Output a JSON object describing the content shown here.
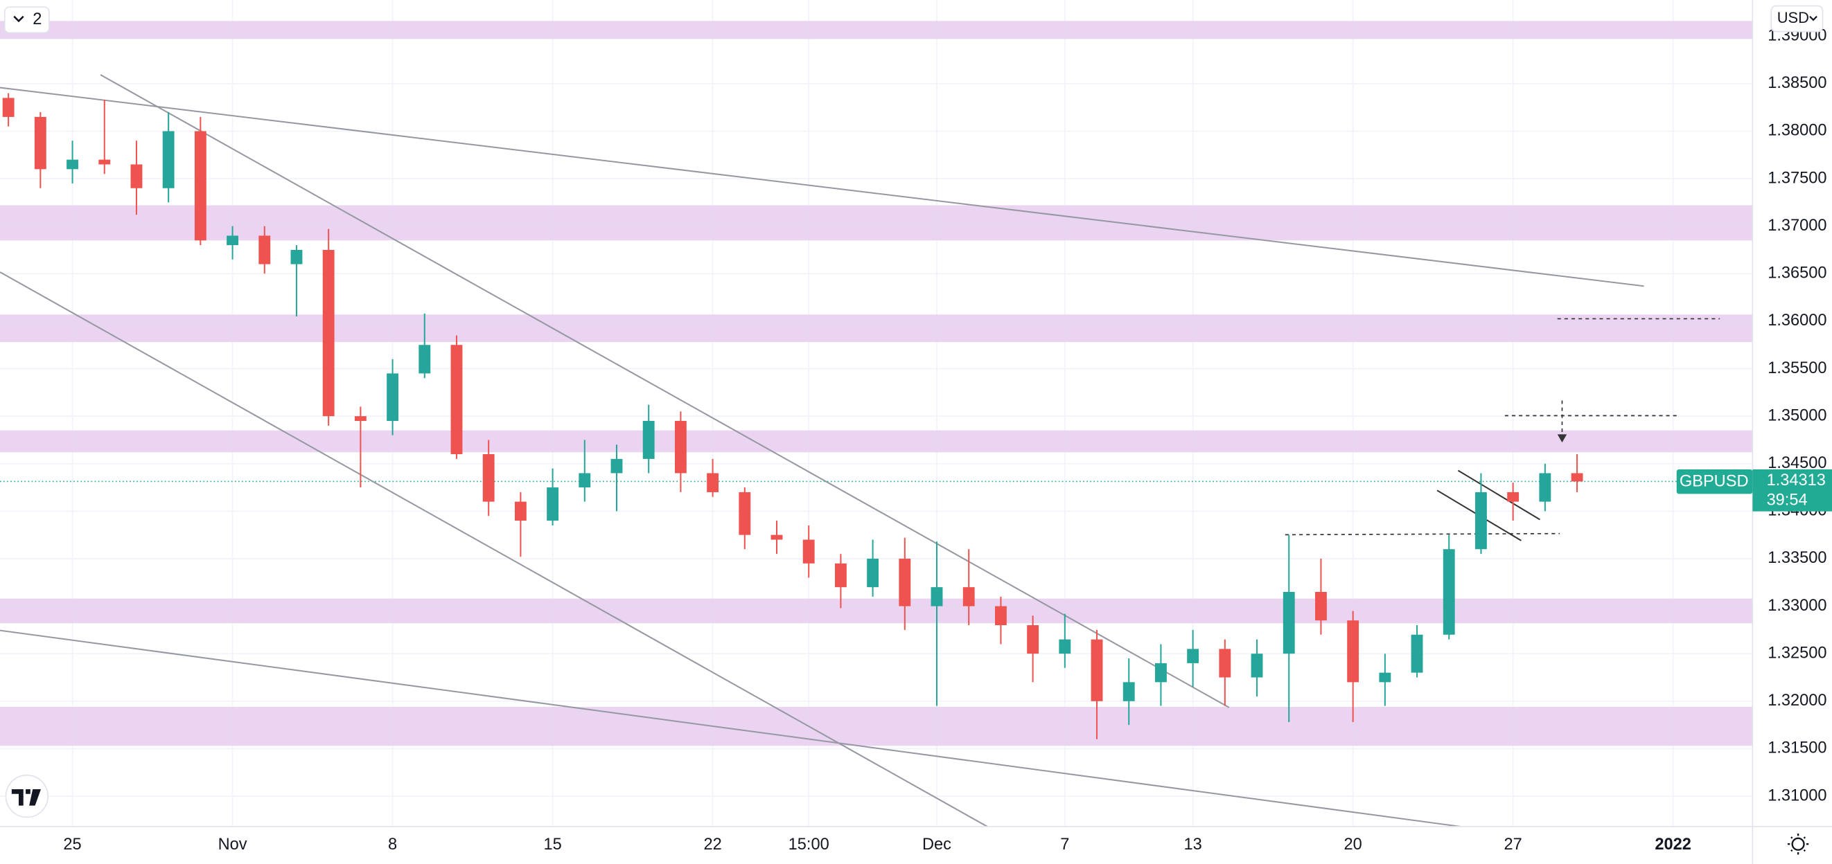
{
  "chart_data": {
    "type": "candlestick",
    "symbol": "GBPUSD",
    "countdown": "39:54",
    "last_price": 1.34313,
    "ui": {
      "interval_button": "2",
      "currency": "USD"
    },
    "categories": [
      null,
      null,
      "25",
      null,
      null,
      null,
      null,
      "Nov",
      null,
      null,
      null,
      null,
      "8",
      null,
      null,
      null,
      null,
      "15",
      null,
      null,
      null,
      null,
      "22",
      null,
      null,
      "15:00",
      null,
      null,
      null,
      "Dec",
      null,
      null,
      null,
      "7",
      null,
      null,
      null,
      "13",
      null,
      null,
      null,
      null,
      "20",
      null,
      null,
      null,
      null,
      "27",
      null,
      null,
      null,
      null,
      "2022"
    ],
    "open": [
      1.3835,
      1.3815,
      1.376,
      1.377,
      1.3765,
      1.374,
      1.38,
      1.368,
      1.369,
      1.366,
      1.3675,
      1.35,
      1.3495,
      1.3545,
      1.3575,
      1.346,
      1.341,
      1.339,
      1.3425,
      1.344,
      1.3455,
      1.3495,
      1.344,
      1.342,
      1.3375,
      1.337,
      1.3345,
      1.332,
      1.335,
      1.33,
      1.332,
      1.33,
      1.328,
      1.325,
      1.3265,
      1.32,
      1.322,
      1.324,
      1.3255,
      1.3225,
      1.325,
      1.3315,
      1.3285,
      1.322,
      1.323,
      1.327,
      1.336,
      1.342,
      1.341,
      1.344,
      null,
      null,
      null
    ],
    "high": [
      1.384,
      1.382,
      1.379,
      1.3833,
      1.379,
      1.382,
      1.3815,
      1.37,
      1.37,
      1.368,
      1.3697,
      1.351,
      1.356,
      1.3608,
      1.3585,
      1.3475,
      1.342,
      1.3445,
      1.3475,
      1.347,
      1.3512,
      1.3505,
      1.3455,
      1.3425,
      1.339,
      1.3385,
      1.3355,
      1.337,
      1.3372,
      1.3368,
      1.336,
      1.331,
      1.329,
      1.3292,
      1.3275,
      1.3245,
      1.326,
      1.3275,
      1.3265,
      1.3265,
      1.3375,
      1.335,
      1.3295,
      1.325,
      1.328,
      1.3375,
      1.344,
      1.343,
      1.345,
      1.346,
      null,
      null,
      null
    ],
    "low": [
      1.3805,
      1.374,
      1.3745,
      1.3755,
      1.3712,
      1.3725,
      1.368,
      1.3665,
      1.365,
      1.3605,
      1.349,
      1.3425,
      1.348,
      1.354,
      1.3455,
      1.3395,
      1.3352,
      1.3385,
      1.341,
      1.34,
      1.344,
      1.342,
      1.3415,
      1.336,
      1.3355,
      1.333,
      1.3298,
      1.331,
      1.3275,
      1.3195,
      1.328,
      1.326,
      1.322,
      1.3235,
      1.316,
      1.3175,
      1.3195,
      1.3215,
      1.3195,
      1.3205,
      1.3178,
      1.327,
      1.3178,
      1.3195,
      1.3225,
      1.3265,
      1.3355,
      1.339,
      1.34,
      1.342,
      null,
      null,
      null
    ],
    "close": [
      1.3815,
      1.376,
      1.377,
      1.3765,
      1.374,
      1.38,
      1.3685,
      1.369,
      1.366,
      1.3675,
      1.35,
      1.3495,
      1.3545,
      1.3575,
      1.346,
      1.341,
      1.339,
      1.3425,
      1.344,
      1.3455,
      1.3495,
      1.344,
      1.342,
      1.3375,
      1.337,
      1.3345,
      1.332,
      1.335,
      1.33,
      1.332,
      1.33,
      1.328,
      1.325,
      1.3265,
      1.32,
      1.322,
      1.324,
      1.3255,
      1.3225,
      1.325,
      1.3315,
      1.3285,
      1.322,
      1.323,
      1.327,
      1.336,
      1.342,
      1.341,
      1.344,
      1.34313,
      null,
      null,
      null
    ],
    "up_color": "#26a69a",
    "down_color": "#ef5350",
    "zones": [
      {
        "low": 1.3897,
        "high": 1.3916
      },
      {
        "low": 1.3685,
        "high": 1.3722
      },
      {
        "low": 1.3578,
        "high": 1.3607
      },
      {
        "low": 1.3462,
        "high": 1.3485
      },
      {
        "low": 1.3282,
        "high": 1.3308
      },
      {
        "low": 1.3153,
        "high": 1.3194
      }
    ],
    "zone_color": "#e6cdee",
    "ylim": [
      1.3068,
      1.3938
    ],
    "yticks": [
      {
        "value": 1.31,
        "label": "1.31000"
      },
      {
        "value": 1.315,
        "label": "1.31500"
      },
      {
        "value": 1.32,
        "label": "1.32000"
      },
      {
        "value": 1.325,
        "label": "1.32500"
      },
      {
        "value": 1.33,
        "label": "1.33000"
      },
      {
        "value": 1.335,
        "label": "1.33500"
      },
      {
        "value": 1.34,
        "label": "1.34000"
      },
      {
        "value": 1.345,
        "label": "1.34500"
      },
      {
        "value": 1.35,
        "label": "1.35000"
      },
      {
        "value": 1.355,
        "label": "1.35500"
      },
      {
        "value": 1.36,
        "label": "1.36000"
      },
      {
        "value": 1.365,
        "label": "1.36500"
      },
      {
        "value": 1.37,
        "label": "1.37000"
      },
      {
        "value": 1.375,
        "label": "1.37500"
      },
      {
        "value": 1.38,
        "label": "1.38000"
      },
      {
        "value": 1.385,
        "label": "1.38500"
      },
      {
        "value": 1.39,
        "label": "1.39000"
      }
    ],
    "grid": true
  }
}
